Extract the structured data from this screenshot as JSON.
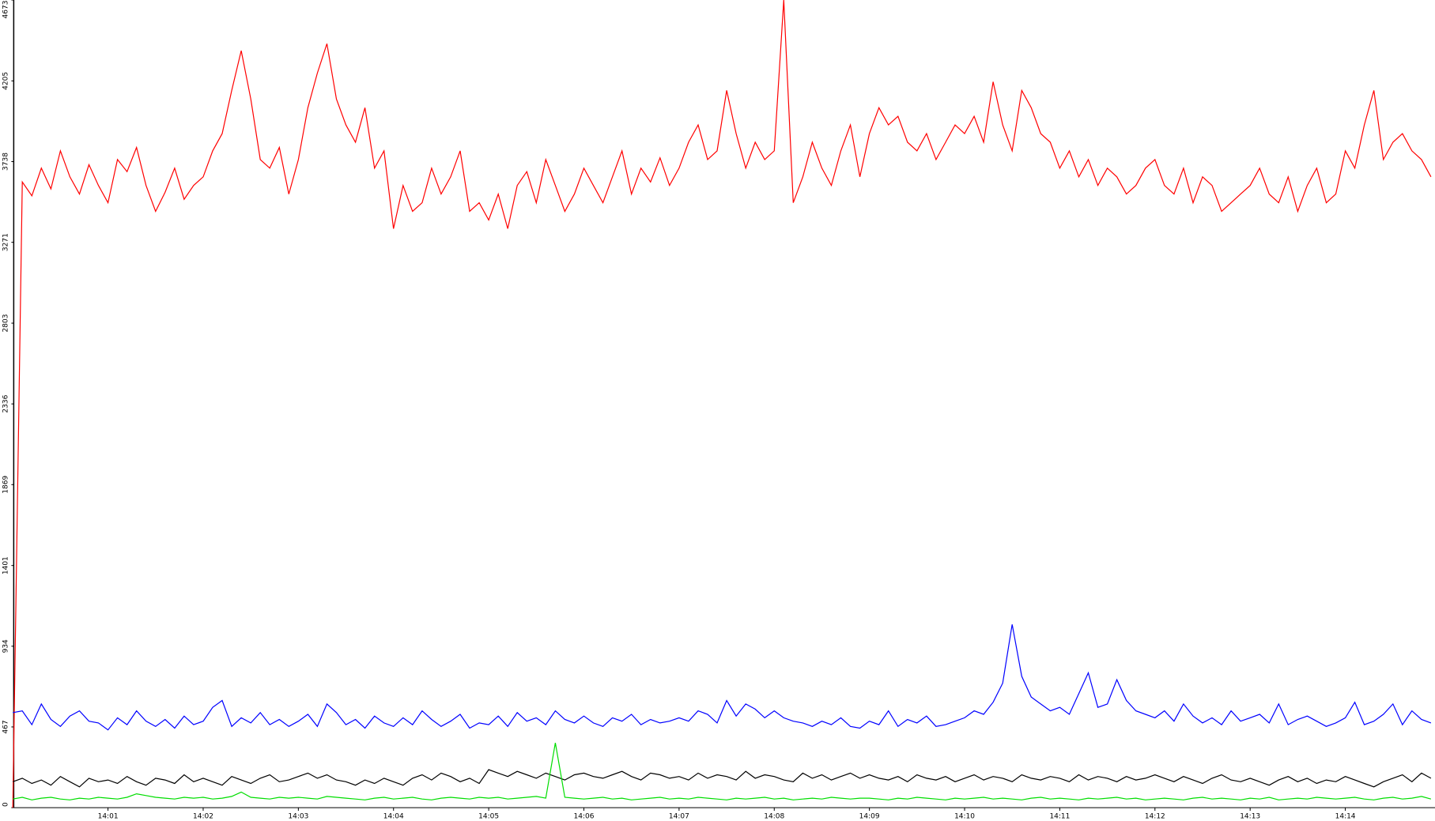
{
  "chart_data": {
    "type": "line",
    "categories": [
      null,
      null,
      null,
      null,
      null,
      null,
      null,
      null,
      null,
      null,
      "14:01",
      null,
      null,
      null,
      null,
      null,
      null,
      null,
      null,
      null,
      "14:02",
      null,
      null,
      null,
      null,
      null,
      null,
      null,
      null,
      null,
      "14:03",
      null,
      null,
      null,
      null,
      null,
      null,
      null,
      null,
      null,
      "14:04",
      null,
      null,
      null,
      null,
      null,
      null,
      null,
      null,
      null,
      "14:05",
      null,
      null,
      null,
      null,
      null,
      null,
      null,
      null,
      null,
      "14:06",
      null,
      null,
      null,
      null,
      null,
      null,
      null,
      null,
      null,
      "14:07",
      null,
      null,
      null,
      null,
      null,
      null,
      null,
      null,
      null,
      "14:08",
      null,
      null,
      null,
      null,
      null,
      null,
      null,
      null,
      null,
      "14:09",
      null,
      null,
      null,
      null,
      null,
      null,
      null,
      null,
      null,
      "14:10",
      null,
      null,
      null,
      null,
      null,
      null,
      null,
      null,
      null,
      "14:11",
      null,
      null,
      null,
      null,
      null,
      null,
      null,
      null,
      null,
      "14:12",
      null,
      null,
      null,
      null,
      null,
      null,
      null,
      null,
      null,
      "14:13",
      null,
      null,
      null,
      null,
      null,
      null,
      null,
      null,
      null,
      "14:14",
      null,
      null,
      null,
      null,
      null,
      null,
      null,
      null,
      null
    ],
    "series": [
      {
        "color": "#ff0000",
        "values": [
          0,
          3620,
          3540,
          3700,
          3580,
          3800,
          3650,
          3550,
          3720,
          3600,
          3500,
          3750,
          3680,
          3820,
          3600,
          3450,
          3560,
          3700,
          3520,
          3600,
          3650,
          3800,
          3900,
          4150,
          4380,
          4100,
          3750,
          3700,
          3820,
          3550,
          3750,
          4050,
          4250,
          4420,
          4100,
          3950,
          3850,
          4050,
          3700,
          3800,
          3350,
          3600,
          3450,
          3500,
          3700,
          3550,
          3650,
          3800,
          3450,
          3500,
          3400,
          3550,
          3350,
          3600,
          3680,
          3500,
          3750,
          3600,
          3450,
          3550,
          3700,
          3600,
          3500,
          3650,
          3800,
          3550,
          3700,
          3620,
          3760,
          3600,
          3700,
          3850,
          3950,
          3750,
          3800,
          4150,
          3900,
          3700,
          3850,
          3750,
          3800,
          4673,
          3500,
          3650,
          3850,
          3700,
          3600,
          3800,
          3950,
          3650,
          3900,
          4050,
          3950,
          4000,
          3850,
          3800,
          3900,
          3750,
          3850,
          3950,
          3900,
          4000,
          3850,
          4200,
          3950,
          3800,
          4150,
          4050,
          3900,
          3850,
          3700,
          3800,
          3650,
          3750,
          3600,
          3700,
          3650,
          3550,
          3600,
          3700,
          3750,
          3600,
          3550,
          3700,
          3500,
          3650,
          3600,
          3450,
          3500,
          3550,
          3600,
          3700,
          3550,
          3500,
          3650,
          3450,
          3600,
          3700,
          3500,
          3550,
          3800,
          3700,
          3950,
          4150,
          3750,
          3850,
          3900,
          3800,
          3750,
          3650
        ]
      },
      {
        "color": "#0000ff",
        "values": [
          550,
          560,
          480,
          600,
          510,
          470,
          530,
          560,
          500,
          490,
          450,
          520,
          480,
          560,
          500,
          470,
          510,
          460,
          530,
          480,
          500,
          580,
          620,
          470,
          520,
          490,
          550,
          480,
          510,
          470,
          500,
          540,
          470,
          600,
          550,
          480,
          510,
          460,
          530,
          490,
          470,
          520,
          480,
          560,
          510,
          470,
          500,
          540,
          460,
          490,
          480,
          530,
          470,
          550,
          500,
          520,
          480,
          560,
          510,
          490,
          530,
          490,
          470,
          520,
          500,
          540,
          480,
          510,
          490,
          500,
          520,
          500,
          560,
          540,
          490,
          620,
          530,
          600,
          570,
          520,
          560,
          520,
          500,
          490,
          470,
          500,
          480,
          520,
          470,
          460,
          500,
          480,
          560,
          470,
          510,
          490,
          530,
          470,
          480,
          500,
          520,
          560,
          540,
          610,
          720,
          1060,
          760,
          640,
          600,
          560,
          580,
          540,
          660,
          780,
          580,
          600,
          740,
          620,
          560,
          540,
          520,
          560,
          500,
          600,
          530,
          490,
          520,
          480,
          560,
          500,
          520,
          540,
          490,
          600,
          480,
          510,
          530,
          500,
          470,
          490,
          520,
          610,
          480,
          500,
          540,
          600,
          480,
          560,
          510,
          490
        ]
      },
      {
        "color": "#000000",
        "values": [
          150,
          170,
          140,
          160,
          130,
          180,
          150,
          120,
          170,
          150,
          160,
          140,
          180,
          150,
          130,
          170,
          160,
          140,
          190,
          150,
          170,
          150,
          130,
          180,
          160,
          140,
          170,
          190,
          150,
          160,
          180,
          200,
          170,
          190,
          160,
          150,
          130,
          160,
          140,
          170,
          150,
          130,
          170,
          190,
          160,
          200,
          180,
          150,
          170,
          140,
          220,
          200,
          180,
          210,
          190,
          170,
          200,
          180,
          160,
          190,
          200,
          180,
          170,
          190,
          210,
          180,
          160,
          200,
          190,
          170,
          180,
          160,
          200,
          170,
          190,
          180,
          160,
          210,
          170,
          190,
          180,
          160,
          150,
          200,
          170,
          190,
          160,
          180,
          200,
          170,
          190,
          170,
          160,
          180,
          150,
          190,
          170,
          160,
          180,
          150,
          170,
          190,
          160,
          180,
          170,
          150,
          190,
          170,
          160,
          180,
          170,
          150,
          190,
          160,
          180,
          170,
          150,
          180,
          160,
          170,
          190,
          170,
          150,
          180,
          160,
          140,
          170,
          190,
          160,
          150,
          170,
          150,
          130,
          160,
          180,
          150,
          170,
          140,
          160,
          150,
          180,
          160,
          140,
          120,
          150,
          170,
          190,
          150,
          200,
          170
        ]
      },
      {
        "color": "#00dd00",
        "values": [
          50,
          60,
          45,
          55,
          60,
          50,
          45,
          55,
          50,
          60,
          55,
          50,
          60,
          80,
          70,
          60,
          55,
          50,
          60,
          55,
          60,
          50,
          55,
          65,
          90,
          60,
          55,
          50,
          60,
          55,
          60,
          55,
          50,
          65,
          60,
          55,
          50,
          45,
          55,
          60,
          50,
          55,
          60,
          50,
          45,
          55,
          60,
          55,
          50,
          60,
          55,
          60,
          50,
          55,
          60,
          65,
          55,
          375,
          60,
          55,
          50,
          55,
          60,
          50,
          55,
          45,
          50,
          55,
          60,
          50,
          55,
          50,
          60,
          55,
          50,
          45,
          55,
          50,
          55,
          60,
          50,
          55,
          45,
          50,
          55,
          50,
          60,
          55,
          50,
          55,
          55,
          50,
          45,
          55,
          50,
          60,
          55,
          50,
          45,
          55,
          50,
          55,
          60,
          50,
          55,
          50,
          45,
          55,
          60,
          50,
          55,
          50,
          45,
          55,
          50,
          55,
          60,
          50,
          55,
          45,
          50,
          55,
          50,
          45,
          55,
          60,
          50,
          55,
          50,
          45,
          55,
          50,
          60,
          45,
          50,
          55,
          50,
          60,
          55,
          50,
          55,
          60,
          50,
          45,
          55,
          60,
          50,
          55,
          65,
          50
        ]
      }
    ],
    "ylim": [
      0,
      4673
    ],
    "yticks": [
      0,
      467,
      934,
      1401,
      1869,
      2336,
      2803,
      3271,
      3738,
      4205,
      4673
    ]
  }
}
